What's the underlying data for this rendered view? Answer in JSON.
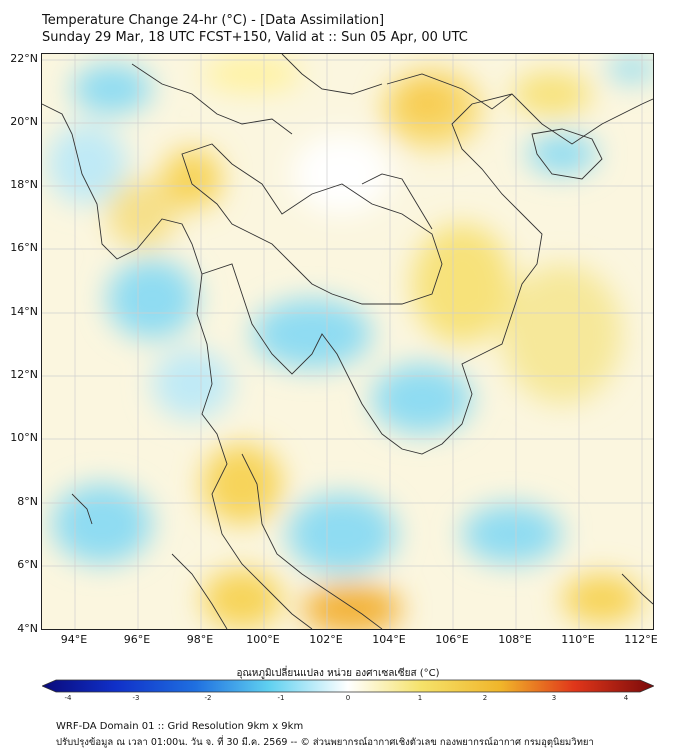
{
  "header": {
    "title_line1": "Temperature Change 24-hr (°C) - [Data Assimilation]",
    "title_line2": "Sunday 29 Mar, 18 UTC FCST+150, Valid at :: Sun 05 Apr, 00 UTC"
  },
  "map": {
    "lat_labels": [
      "22°N",
      "20°N",
      "18°N",
      "16°N",
      "14°N",
      "12°N",
      "10°N",
      "8°N",
      "6°N",
      "4°N"
    ],
    "lon_labels": [
      "94°E",
      "96°E",
      "98°E",
      "100°E",
      "102°E",
      "104°E",
      "106°E",
      "108°E",
      "110°E",
      "112°E"
    ],
    "extent": {
      "lon_min": 93,
      "lon_max": 112.5,
      "lat_min": 4,
      "lat_max": 22.2
    }
  },
  "colorbar": {
    "title": "อุณหภูมิเปลี่ยนแปลง หน่วย องศาเซลเซียส (°C)",
    "ticks": [
      "-4",
      "-3",
      "-2",
      "-1",
      "0",
      "1",
      "2",
      "3",
      "4"
    ],
    "min": -4,
    "max": 4,
    "colors": {
      "cold_extreme": "#0a0a7a",
      "cold": "#1f6fe0",
      "cool": "#5fd0f0",
      "neutral": "#ffffff",
      "warm": "#f5e26a",
      "hot": "#f08a1e",
      "hot_extreme": "#7a0a0a"
    }
  },
  "footer": {
    "line1": "WRF-DA Domain 01 :: Grid Resolution 9km x 9km",
    "line2": "ปรับปรุงข้อมูล ณ เวลา 01:00น. วัน จ. ที่ 30 มี.ค. 2569 -- © ส่วนพยากรณ์อากาศเชิงตัวเลข กองพยากรณ์อากาศ กรมอุตุนิยมวิทยา"
  }
}
